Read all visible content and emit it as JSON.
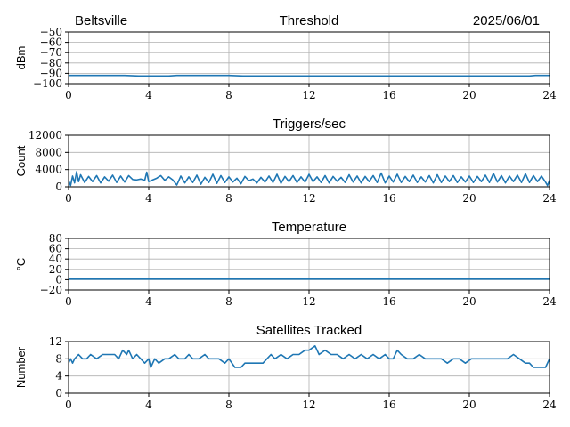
{
  "header": {
    "location": "Beltsville",
    "date": "2025/06/01"
  },
  "colors": {
    "series": "#1f77b4",
    "grid": "#b0b0b0",
    "axes": "#000000"
  },
  "chart_data": [
    {
      "type": "line",
      "title": "Threshold",
      "xlabel": "",
      "ylabel": "dBm",
      "xlim": [
        0,
        24
      ],
      "ylim": [
        -100,
        -50
      ],
      "x_ticks": [
        0,
        4,
        8,
        12,
        16,
        20,
        24
      ],
      "y_ticks": [
        -100,
        -90,
        -80,
        -70,
        -60,
        -50
      ],
      "grid": true,
      "series": [
        {
          "x": [
            0,
            1,
            2,
            2.8,
            3.5,
            4,
            5,
            5.4,
            6,
            7,
            8,
            8.7,
            9,
            10,
            11,
            12,
            13,
            14,
            15,
            16,
            17,
            18,
            19,
            20,
            21,
            22,
            23,
            23.3,
            24
          ],
          "y": [
            -92,
            -92,
            -92,
            -92,
            -92.5,
            -92.5,
            -92.5,
            -92,
            -92,
            -92,
            -92,
            -92.5,
            -92.5,
            -92.5,
            -92.5,
            -92.5,
            -92.5,
            -92.5,
            -92.5,
            -92.5,
            -92.5,
            -92.5,
            -92.5,
            -92.5,
            -92.5,
            -92.5,
            -92.5,
            -92,
            -92
          ]
        }
      ]
    },
    {
      "type": "line",
      "title": "Triggers/sec",
      "xlabel": "",
      "ylabel": "Count",
      "xlim": [
        0,
        24
      ],
      "ylim": [
        0,
        12000
      ],
      "x_ticks": [
        0,
        4,
        8,
        12,
        16,
        20,
        24
      ],
      "y_ticks": [
        0,
        4000,
        8000,
        12000
      ],
      "grid": true,
      "series": [
        {
          "x": [
            0,
            0.1,
            0.2,
            0.3,
            0.4,
            0.5,
            0.6,
            0.8,
            1,
            1.2,
            1.4,
            1.6,
            1.8,
            2,
            2.2,
            2.4,
            2.6,
            2.8,
            3,
            3.2,
            3.4,
            3.6,
            3.8,
            3.9,
            4,
            4.2,
            4.4,
            4.6,
            4.8,
            5,
            5.2,
            5.4,
            5.6,
            5.8,
            6,
            6.2,
            6.4,
            6.6,
            6.8,
            7,
            7.2,
            7.4,
            7.6,
            7.8,
            8,
            8.2,
            8.4,
            8.6,
            8.8,
            9,
            9.2,
            9.4,
            9.6,
            9.8,
            10,
            10.2,
            10.4,
            10.6,
            10.8,
            11,
            11.2,
            11.4,
            11.6,
            11.8,
            12,
            12.2,
            12.4,
            12.6,
            12.8,
            13,
            13.2,
            13.4,
            13.6,
            13.8,
            14,
            14.2,
            14.4,
            14.6,
            14.8,
            15,
            15.2,
            15.4,
            15.6,
            15.8,
            16,
            16.2,
            16.4,
            16.6,
            16.8,
            17,
            17.2,
            17.4,
            17.6,
            17.8,
            18,
            18.2,
            18.4,
            18.6,
            18.8,
            19,
            19.2,
            19.4,
            19.6,
            19.8,
            20,
            20.2,
            20.4,
            20.6,
            20.8,
            21,
            21.2,
            21.4,
            21.6,
            21.8,
            22,
            22.2,
            22.4,
            22.6,
            22.8,
            23,
            23.2,
            23.4,
            23.6,
            23.8,
            23.9,
            24
          ],
          "y": [
            1500,
            300,
            2500,
            900,
            3500,
            1200,
            2800,
            1000,
            2400,
            1200,
            2600,
            900,
            2300,
            1300,
            2700,
            1000,
            2500,
            1100,
            2600,
            1700,
            1600,
            1800,
            1500,
            3400,
            1200,
            1600,
            2000,
            2600,
            1500,
            2300,
            1600,
            400,
            2500,
            900,
            2300,
            1000,
            2700,
            600,
            2200,
            1000,
            2900,
            800,
            2600,
            1000,
            2300,
            1100,
            2000,
            700,
            2400,
            1400,
            1800,
            900,
            2200,
            1100,
            2500,
            1000,
            2900,
            800,
            2400,
            1200,
            2600,
            1000,
            2300,
            1100,
            2900,
            1200,
            2300,
            1000,
            2600,
            900,
            2400,
            1300,
            2200,
            1000,
            2800,
            1100,
            2500,
            900,
            2400,
            1200,
            2600,
            1000,
            3200,
            900,
            2500,
            1100,
            2900,
            1000,
            2400,
            1200,
            2700,
            1000,
            2300,
            1100,
            2600,
            900,
            2800,
            1000,
            2500,
            1200,
            2600,
            1000,
            2300,
            1100,
            2500,
            1000,
            2400,
            1200,
            2700,
            1000,
            3100,
            1100,
            2600,
            900,
            2500,
            1200,
            2700,
            1000,
            3000,
            1000,
            2600,
            1200,
            2500,
            1100,
            300,
            1500
          ]
        }
      ]
    },
    {
      "type": "line",
      "title": "Temperature",
      "xlabel": "",
      "ylabel": "°C",
      "xlim": [
        0,
        24
      ],
      "ylim": [
        -20,
        80
      ],
      "x_ticks": [
        0,
        4,
        8,
        12,
        16,
        20,
        24
      ],
      "y_ticks": [
        -20,
        0,
        20,
        40,
        60,
        80
      ],
      "grid": true,
      "series": [
        {
          "x": [
            0,
            24
          ],
          "y": [
            1,
            1
          ]
        }
      ]
    },
    {
      "type": "line",
      "title": "Satellites Tracked",
      "xlabel": "",
      "ylabel": "Number",
      "xlim": [
        0,
        24
      ],
      "ylim": [
        0,
        12
      ],
      "x_ticks": [
        0,
        4,
        8,
        12,
        16,
        20,
        24
      ],
      "y_ticks": [
        0,
        4,
        8,
        12
      ],
      "grid": true,
      "series": [
        {
          "x": [
            0,
            0.1,
            0.2,
            0.3,
            0.5,
            0.7,
            0.9,
            1.1,
            1.4,
            1.7,
            2,
            2.3,
            2.5,
            2.7,
            2.9,
            3,
            3.2,
            3.4,
            3.6,
            3.8,
            4,
            4.1,
            4.3,
            4.5,
            4.8,
            5,
            5.3,
            5.5,
            5.8,
            6,
            6.2,
            6.5,
            6.8,
            7,
            7.2,
            7.5,
            7.8,
            8,
            8.3,
            8.6,
            8.8,
            9,
            9.3,
            9.5,
            9.7,
            9.9,
            10.1,
            10.3,
            10.6,
            10.9,
            11.2,
            11.5,
            11.8,
            12,
            12.3,
            12.5,
            12.8,
            13.1,
            13.4,
            13.7,
            14,
            14.3,
            14.6,
            14.9,
            15.2,
            15.5,
            15.8,
            16,
            16.2,
            16.4,
            16.6,
            16.9,
            17.2,
            17.5,
            17.8,
            18,
            18.3,
            18.6,
            18.9,
            19.2,
            19.5,
            19.8,
            20.1,
            20.4,
            20.7,
            21,
            21.3,
            21.6,
            21.9,
            22.2,
            22.5,
            22.8,
            23,
            23.2,
            23.5,
            23.8,
            24
          ],
          "y": [
            7,
            8,
            7,
            8,
            9,
            8,
            8,
            9,
            8,
            9,
            9,
            9,
            8,
            10,
            9,
            10,
            8,
            9,
            8,
            7,
            8,
            6,
            8,
            7,
            8,
            8,
            9,
            8,
            8,
            9,
            8,
            8,
            9,
            8,
            8,
            8,
            7,
            8,
            6,
            6,
            7,
            7,
            7,
            7,
            7,
            8,
            9,
            8,
            9,
            8,
            9,
            9,
            10,
            10,
            11,
            9,
            10,
            9,
            9,
            8,
            9,
            8,
            9,
            8,
            9,
            8,
            9,
            8,
            8,
            10,
            9,
            8,
            8,
            9,
            8,
            8,
            8,
            8,
            7,
            8,
            8,
            7,
            8,
            8,
            8,
            8,
            8,
            8,
            8,
            9,
            8,
            7,
            7,
            6,
            6,
            6,
            8
          ]
        }
      ]
    }
  ]
}
